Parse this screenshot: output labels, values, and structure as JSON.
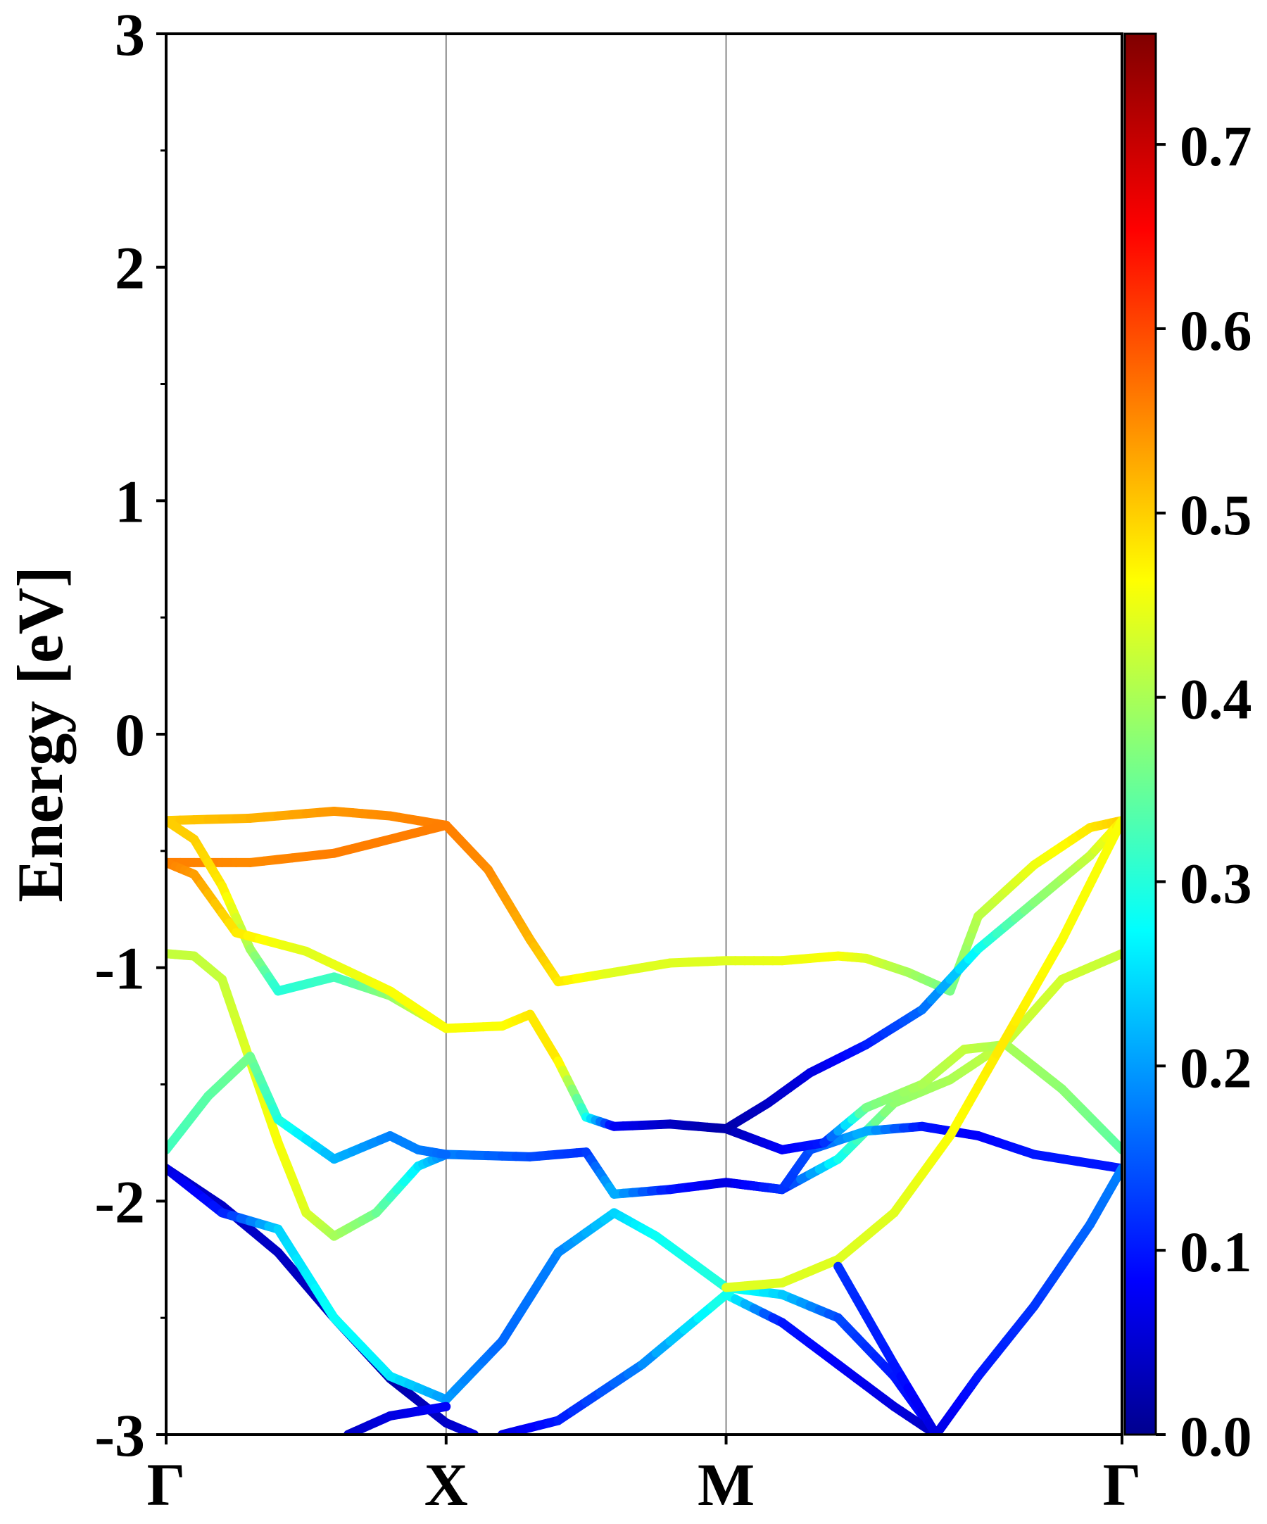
{
  "chart_data": {
    "type": "line",
    "title": "",
    "xlabel": "",
    "ylabel": "Energy [eV]",
    "ylim": [
      -3,
      3
    ],
    "y_ticks": [
      -3,
      -2,
      -1,
      0,
      1,
      2,
      3
    ],
    "y_tick_labels": [
      "-3",
      "-2",
      "-1",
      "0",
      "1",
      "2",
      "3"
    ],
    "high_symmetry_points": [
      {
        "label": "Γ",
        "k": 0.0
      },
      {
        "label": "X",
        "k": 1.0
      },
      {
        "label": "M",
        "k": 2.0
      },
      {
        "label": "Γ",
        "k": 3.414
      }
    ],
    "x_range": [
      0,
      3.414
    ],
    "grid": false,
    "colorbar": {
      "colormap": "jet",
      "range": [
        0,
        0.76
      ],
      "ticks": [
        0.0,
        0.1,
        0.2,
        0.3,
        0.4,
        0.5,
        0.6,
        0.7
      ],
      "tick_labels": [
        "0.0",
        "0.1",
        "0.2",
        "0.3",
        "0.4",
        "0.5",
        "0.6",
        "0.7"
      ]
    },
    "series": [
      {
        "points": [
          [
            0.0,
            -0.37,
            0.5
          ],
          [
            0.3,
            -0.36,
            0.52
          ],
          [
            0.6,
            -0.33,
            0.54
          ],
          [
            0.8,
            -0.35,
            0.55
          ],
          [
            1.0,
            -0.39,
            0.56
          ],
          [
            1.15,
            -0.58,
            0.55
          ],
          [
            1.3,
            -0.88,
            0.52
          ],
          [
            1.4,
            -1.06,
            0.48
          ],
          [
            1.6,
            -1.02,
            0.44
          ],
          [
            1.8,
            -0.98,
            0.44
          ],
          [
            2.0,
            -0.97,
            0.44
          ],
          [
            2.2,
            -0.97,
            0.45
          ],
          [
            2.4,
            -0.95,
            0.46
          ],
          [
            2.5,
            -0.96,
            0.44
          ],
          [
            2.65,
            -1.02,
            0.4
          ],
          [
            2.8,
            -1.1,
            0.36
          ],
          [
            2.9,
            -0.78,
            0.41
          ],
          [
            3.1,
            -0.56,
            0.45
          ],
          [
            3.3,
            -0.4,
            0.48
          ],
          [
            3.414,
            -0.37,
            0.5
          ]
        ]
      },
      {
        "points": [
          [
            0.0,
            -0.55,
            0.56
          ],
          [
            0.3,
            -0.55,
            0.55
          ],
          [
            0.6,
            -0.51,
            0.56
          ],
          [
            0.8,
            -0.45,
            0.56
          ],
          [
            1.0,
            -0.39,
            0.56
          ]
        ]
      },
      {
        "points": [
          [
            0.0,
            -0.37,
            0.5
          ],
          [
            0.1,
            -0.45,
            0.5
          ],
          [
            0.2,
            -0.65,
            0.48
          ],
          [
            0.3,
            -0.92,
            0.4
          ],
          [
            0.4,
            -1.1,
            0.3
          ],
          [
            0.6,
            -1.04,
            0.32
          ],
          [
            0.8,
            -1.12,
            0.38
          ],
          [
            1.0,
            -1.26,
            0.46
          ],
          [
            1.2,
            -1.25,
            0.46
          ],
          [
            1.3,
            -1.2,
            0.48
          ],
          [
            1.4,
            -1.4,
            0.48
          ],
          [
            1.5,
            -1.64,
            0.3
          ],
          [
            1.6,
            -1.68,
            0.08
          ],
          [
            1.8,
            -1.67,
            0.04
          ],
          [
            2.0,
            -1.69,
            0.02
          ],
          [
            2.15,
            -1.58,
            0.04
          ],
          [
            2.3,
            -1.45,
            0.06
          ],
          [
            2.5,
            -1.33,
            0.1
          ],
          [
            2.7,
            -1.18,
            0.16
          ],
          [
            2.9,
            -0.92,
            0.28
          ],
          [
            3.1,
            -0.72,
            0.37
          ],
          [
            3.3,
            -0.52,
            0.42
          ],
          [
            3.414,
            -0.37,
            0.48
          ]
        ]
      },
      {
        "points": [
          [
            0.0,
            -0.55,
            0.56
          ],
          [
            0.1,
            -0.6,
            0.54
          ],
          [
            0.25,
            -0.85,
            0.48
          ],
          [
            0.5,
            -0.93,
            0.44
          ],
          [
            0.8,
            -1.1,
            0.46
          ],
          [
            1.0,
            -1.26,
            0.46
          ]
        ]
      },
      {
        "points": [
          [
            0.0,
            -0.94,
            0.42
          ],
          [
            0.1,
            -0.95,
            0.42
          ],
          [
            0.2,
            -1.05,
            0.42
          ],
          [
            0.3,
            -1.4,
            0.44
          ],
          [
            0.4,
            -1.75,
            0.46
          ],
          [
            0.5,
            -2.05,
            0.44
          ],
          [
            0.6,
            -2.15,
            0.4
          ],
          [
            0.75,
            -2.05,
            0.36
          ],
          [
            0.9,
            -1.85,
            0.26
          ],
          [
            1.0,
            -1.8,
            0.18
          ],
          [
            1.3,
            -1.81,
            0.14
          ],
          [
            1.5,
            -1.79,
            0.12
          ],
          [
            1.6,
            -1.97,
            0.22
          ],
          [
            1.8,
            -1.95,
            0.1
          ],
          [
            2.0,
            -1.92,
            0.06
          ],
          [
            2.2,
            -1.95,
            0.1
          ],
          [
            2.4,
            -1.82,
            0.28
          ],
          [
            2.6,
            -1.58,
            0.38
          ],
          [
            2.8,
            -1.48,
            0.4
          ],
          [
            3.0,
            -1.32,
            0.42
          ],
          [
            3.2,
            -1.05,
            0.43
          ],
          [
            3.414,
            -0.94,
            0.42
          ]
        ]
      },
      {
        "points": [
          [
            0.0,
            -1.78,
            0.32
          ],
          [
            0.15,
            -1.55,
            0.34
          ],
          [
            0.3,
            -1.38,
            0.36
          ],
          [
            0.4,
            -1.65,
            0.3
          ],
          [
            0.6,
            -1.82,
            0.22
          ],
          [
            0.8,
            -1.72,
            0.18
          ],
          [
            0.9,
            -1.78,
            0.18
          ],
          [
            1.0,
            -1.8,
            0.16
          ]
        ]
      },
      {
        "points": [
          [
            2.0,
            -1.92,
            0.06
          ],
          [
            2.2,
            -1.95,
            0.12
          ],
          [
            2.3,
            -1.78,
            0.14
          ],
          [
            2.5,
            -1.7,
            0.22
          ],
          [
            2.7,
            -1.68,
            0.1
          ],
          [
            2.9,
            -1.72,
            0.08
          ],
          [
            3.1,
            -1.8,
            0.1
          ],
          [
            3.414,
            -1.86,
            0.1
          ]
        ]
      },
      {
        "points": [
          [
            2.0,
            -1.69,
            0.02
          ],
          [
            2.2,
            -1.78,
            0.08
          ],
          [
            2.35,
            -1.75,
            0.1
          ],
          [
            2.5,
            -1.6,
            0.36
          ],
          [
            2.7,
            -1.5,
            0.4
          ],
          [
            2.85,
            -1.35,
            0.42
          ],
          [
            3.0,
            -1.33,
            0.4
          ],
          [
            3.2,
            -1.52,
            0.38
          ],
          [
            3.414,
            -1.78,
            0.34
          ]
        ]
      },
      {
        "points": [
          [
            0.0,
            -1.86,
            0.04
          ],
          [
            0.2,
            -2.02,
            0.04
          ],
          [
            0.4,
            -2.22,
            0.04
          ],
          [
            0.6,
            -2.5,
            0.03
          ],
          [
            0.8,
            -2.76,
            0.02
          ],
          [
            1.0,
            -2.95,
            0.04
          ],
          [
            1.1,
            -3.0,
            0.06
          ]
        ]
      },
      {
        "points": [
          [
            0.0,
            -1.86,
            0.06
          ],
          [
            0.2,
            -2.05,
            0.1
          ],
          [
            0.4,
            -2.12,
            0.24
          ],
          [
            0.6,
            -2.5,
            0.28
          ],
          [
            0.8,
            -2.75,
            0.26
          ],
          [
            1.0,
            -2.85,
            0.2
          ],
          [
            1.2,
            -2.6,
            0.16
          ],
          [
            1.4,
            -2.22,
            0.18
          ],
          [
            1.6,
            -2.05,
            0.24
          ],
          [
            1.75,
            -2.15,
            0.28
          ],
          [
            2.0,
            -2.37,
            0.3
          ],
          [
            2.2,
            -2.4,
            0.24
          ],
          [
            2.4,
            -2.5,
            0.14
          ],
          [
            2.6,
            -2.75,
            0.1
          ],
          [
            2.75,
            -3.0,
            0.08
          ]
        ]
      },
      {
        "points": [
          [
            0.65,
            -3.0,
            0.04
          ],
          [
            0.8,
            -2.92,
            0.06
          ],
          [
            1.0,
            -2.88,
            0.08
          ]
        ]
      },
      {
        "points": [
          [
            1.2,
            -3.0,
            0.06
          ],
          [
            1.4,
            -2.94,
            0.1
          ],
          [
            1.7,
            -2.7,
            0.18
          ],
          [
            2.0,
            -2.4,
            0.3
          ],
          [
            2.2,
            -2.52,
            0.1
          ],
          [
            2.4,
            -2.7,
            0.08
          ],
          [
            2.6,
            -2.88,
            0.06
          ],
          [
            2.75,
            -3.0,
            0.04
          ]
        ]
      },
      {
        "points": [
          [
            2.0,
            -2.37,
            0.44
          ],
          [
            2.2,
            -2.35,
            0.44
          ],
          [
            2.4,
            -2.25,
            0.44
          ],
          [
            2.6,
            -2.05,
            0.44
          ],
          [
            2.8,
            -1.72,
            0.46
          ],
          [
            3.0,
            -1.3,
            0.48
          ],
          [
            3.2,
            -0.88,
            0.46
          ],
          [
            3.414,
            -0.37,
            0.46
          ]
        ]
      },
      {
        "points": [
          [
            2.4,
            -2.28,
            0.12
          ],
          [
            2.6,
            -2.7,
            0.1
          ],
          [
            2.75,
            -3.0,
            0.06
          ],
          [
            2.9,
            -2.75,
            0.1
          ],
          [
            3.1,
            -2.45,
            0.12
          ],
          [
            3.3,
            -2.1,
            0.16
          ],
          [
            3.414,
            -1.86,
            0.18
          ]
        ]
      }
    ]
  }
}
